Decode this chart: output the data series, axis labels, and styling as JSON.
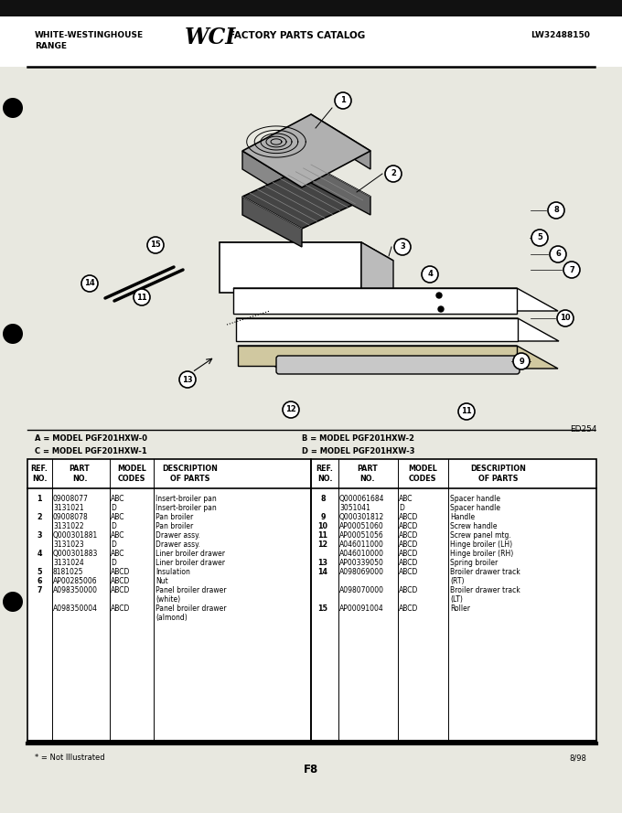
{
  "bg_color": "#e8e8e0",
  "title_left1": "WHITE-WESTINGHOUSE",
  "title_left2": "RANGE",
  "title_center": "FACTORY PARTS CATALOG",
  "title_right": "LW32488150",
  "diagram_code": "ED254",
  "page_code": "F8",
  "date_code": "8/98",
  "footnote": "* = Not Illustrated",
  "model_codes_left": "A = MODEL PGF201HXW-0\nC = MODEL PGF201HXW-1",
  "model_codes_right": "B = MODEL PGF201HXW-2\nD = MODEL PGF201HXW-3",
  "parts_left": [
    [
      "1",
      "09008077",
      "ABC",
      "Insert-broiler pan"
    ],
    [
      "",
      "3131021",
      "D",
      "Insert-broiler pan"
    ],
    [
      "2",
      "09008078",
      "ABC",
      "Pan broiler"
    ],
    [
      "",
      "3131022",
      "D",
      "Pan broiler"
    ],
    [
      "3",
      "Q000301881",
      "ABC",
      "Drawer assy."
    ],
    [
      "",
      "3131023",
      "D",
      "Drawer assy."
    ],
    [
      "4",
      "Q000301883",
      "ABC",
      "Liner broiler drawer"
    ],
    [
      "",
      "3131024",
      "D",
      "Liner broiler drawer"
    ],
    [
      "5",
      "8181025",
      "ABCD",
      "Insulation"
    ],
    [
      "6",
      "AP00285006",
      "ABCD",
      "Nut"
    ],
    [
      "7",
      "A098350000",
      "ABCD",
      "Panel broiler drawer"
    ],
    [
      "",
      "",
      "",
      "(white)"
    ],
    [
      "",
      "A098350004",
      "ABCD",
      "Panel broiler drawer"
    ],
    [
      "",
      "",
      "",
      "(almond)"
    ]
  ],
  "parts_right": [
    [
      "8",
      "Q000061684",
      "ABC",
      "Spacer handle"
    ],
    [
      "",
      "3051041",
      "D",
      "Spacer handle"
    ],
    [
      "9",
      "Q000301812",
      "ABCD",
      "Handle"
    ],
    [
      "10",
      "AP00051060",
      "ABCD",
      "Screw handle"
    ],
    [
      "11",
      "AP00051056",
      "ABCD",
      "Screw panel mtg."
    ],
    [
      "12",
      "A046011000",
      "ABCD",
      "Hinge broiler (LH)"
    ],
    [
      "",
      "A046010000",
      "ABCD",
      "Hinge broiler (RH)"
    ],
    [
      "13",
      "AP00339050",
      "ABCD",
      "Spring broiler"
    ],
    [
      "14",
      "A098069000",
      "ABCD",
      "Broiler drawer track"
    ],
    [
      "",
      "",
      "",
      "(RT)"
    ],
    [
      "",
      "A098070000",
      "ABCD",
      "Broiler drawer track"
    ],
    [
      "",
      "",
      "",
      "(LT)"
    ],
    [
      "15",
      "AP00091004",
      "ABCD",
      "Roller"
    ]
  ]
}
